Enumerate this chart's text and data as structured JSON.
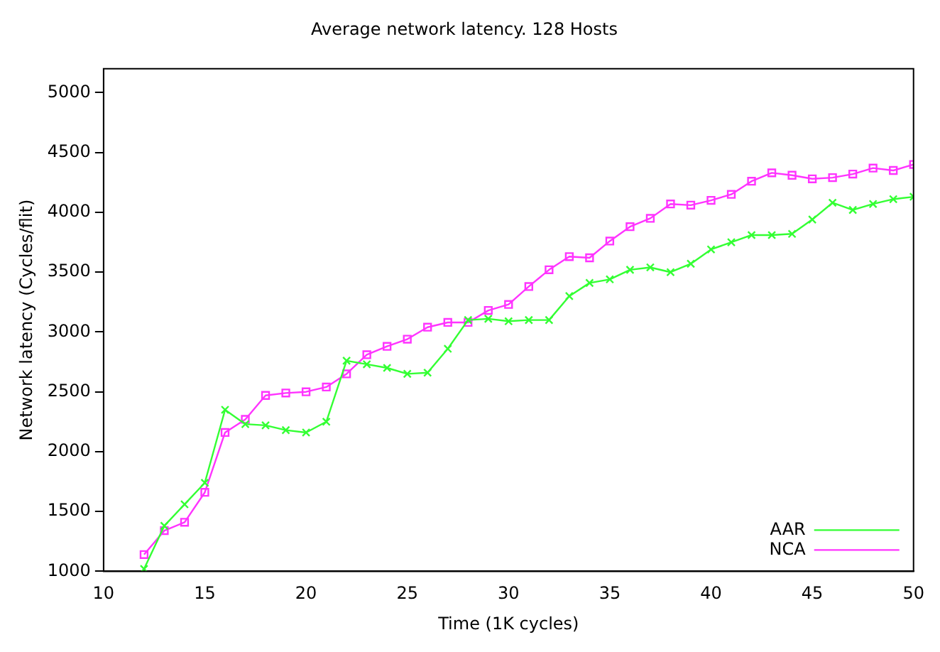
{
  "chart_data": {
    "type": "line",
    "title": "Average network latency. 128 Hosts",
    "xlabel": "Time (1K cycles)",
    "ylabel": "Network latency (Cycles/flit)",
    "x": [
      12,
      13,
      14,
      15,
      16,
      17,
      18,
      19,
      20,
      21,
      22,
      23,
      24,
      25,
      26,
      27,
      28,
      29,
      30,
      31,
      32,
      33,
      34,
      35,
      36,
      37,
      38,
      39,
      40,
      41,
      42,
      43,
      44,
      45,
      46,
      47,
      48,
      49,
      50
    ],
    "series": [
      {
        "name": "AAR",
        "color": "#33ff33",
        "marker": "cross",
        "values": [
          1020,
          1380,
          1560,
          1740,
          2350,
          2230,
          2220,
          2180,
          2160,
          2250,
          2760,
          2730,
          2700,
          2650,
          2660,
          2860,
          3100,
          3110,
          3090,
          3100,
          3100,
          3300,
          3410,
          3440,
          3520,
          3540,
          3500,
          3570,
          3690,
          3750,
          3810,
          3810,
          3820,
          3940,
          4080,
          4020,
          4070,
          4110,
          4130
        ]
      },
      {
        "name": "NCA",
        "color": "#ff33ff",
        "marker": "square",
        "values": [
          1140,
          1340,
          1410,
          1660,
          2160,
          2270,
          2470,
          2490,
          2500,
          2540,
          2650,
          2810,
          2880,
          2940,
          3040,
          3080,
          3080,
          3180,
          3230,
          3380,
          3520,
          3630,
          3620,
          3760,
          3880,
          3950,
          4070,
          4060,
          4100,
          4150,
          4260,
          4330,
          4310,
          4280,
          4290,
          4320,
          4370,
          4350,
          4400
        ]
      }
    ],
    "xlim": [
      10,
      50
    ],
    "xticks": [
      10,
      15,
      20,
      25,
      30,
      35,
      40,
      45,
      50
    ],
    "ylim": [
      1000,
      5200
    ],
    "yticks": [
      1000,
      1500,
      2000,
      2500,
      3000,
      3500,
      4000,
      4500,
      5000
    ],
    "grid": false,
    "legend": "bottom right",
    "line_style": "solid"
  }
}
